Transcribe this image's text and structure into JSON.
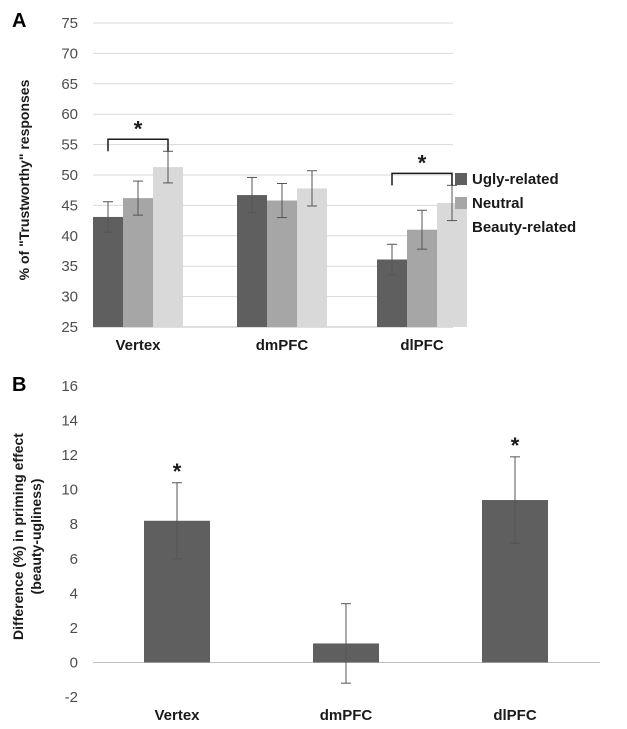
{
  "chart_data": [
    {
      "panel_label": "A",
      "type": "bar",
      "ylabel": "% of \"Trustworthy\" responses",
      "ylim": [
        25,
        75
      ],
      "yticks": [
        25,
        30,
        35,
        40,
        45,
        50,
        55,
        60,
        65,
        70,
        75
      ],
      "categories": [
        "Vertex",
        "dmPFC",
        "dlPFC"
      ],
      "series": [
        {
          "name": "Ugly-related",
          "color": "#5f5f5f",
          "values": [
            43.1,
            46.7,
            36.1
          ],
          "errors": [
            2.5,
            2.9,
            2.5
          ]
        },
        {
          "name": "Neutral",
          "color": "#a6a6a6",
          "values": [
            46.2,
            45.8,
            41.0
          ],
          "errors": [
            2.8,
            2.8,
            3.2
          ]
        },
        {
          "name": "Beauty-related",
          "color": "#d9d9d9",
          "values": [
            51.3,
            47.8,
            45.4
          ],
          "errors": [
            2.6,
            2.9,
            2.9
          ]
        }
      ],
      "legend_position": "right",
      "grid": true,
      "significance": [
        {
          "category": "Vertex",
          "label": "*"
        },
        {
          "category": "dlPFC",
          "label": "*"
        }
      ]
    },
    {
      "panel_label": "B",
      "type": "bar",
      "ylabel": "Difference (%) in priming effect (beauty-ugliness)",
      "ylim": [
        -2,
        16
      ],
      "yticks": [
        -2,
        0,
        2,
        4,
        6,
        8,
        10,
        12,
        14,
        16
      ],
      "categories": [
        "Vertex",
        "dmPFC",
        "dlPFC"
      ],
      "series": [
        {
          "color": "#5f5f5f",
          "values": [
            8.2,
            1.1,
            9.4
          ],
          "errors": [
            2.2,
            2.3,
            2.5
          ]
        }
      ],
      "grid": false,
      "significance": [
        {
          "category": "Vertex",
          "label": "*"
        },
        {
          "category": "dlPFC",
          "label": "*"
        }
      ]
    }
  ]
}
